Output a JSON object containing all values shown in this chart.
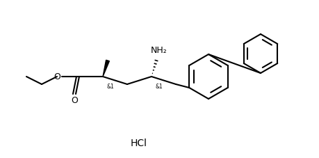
{
  "background_color": "#ffffff",
  "line_color": "#000000",
  "line_width": 1.5,
  "hcl_text": "HCl",
  "nh2_text": "NH₂",
  "o_carbonyl": "O",
  "o_ester": "O",
  "and1_text": "&1",
  "and2_text": "&1",
  "fig_width": 4.59,
  "fig_height": 2.28,
  "dpi": 100
}
